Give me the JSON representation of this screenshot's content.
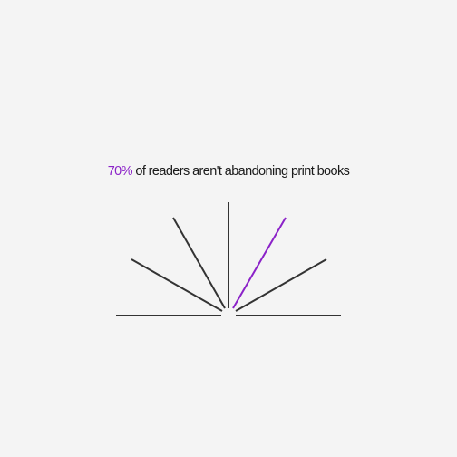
{
  "headline": {
    "percent_text": "70%",
    "rest_text": " of readers aren't abandoning print books"
  },
  "colors": {
    "background": "#f4f4f4",
    "text": "#1a1a1a",
    "accent": "#8b22c8",
    "lines": "#333333"
  },
  "icon": "open-book-fan-icon"
}
